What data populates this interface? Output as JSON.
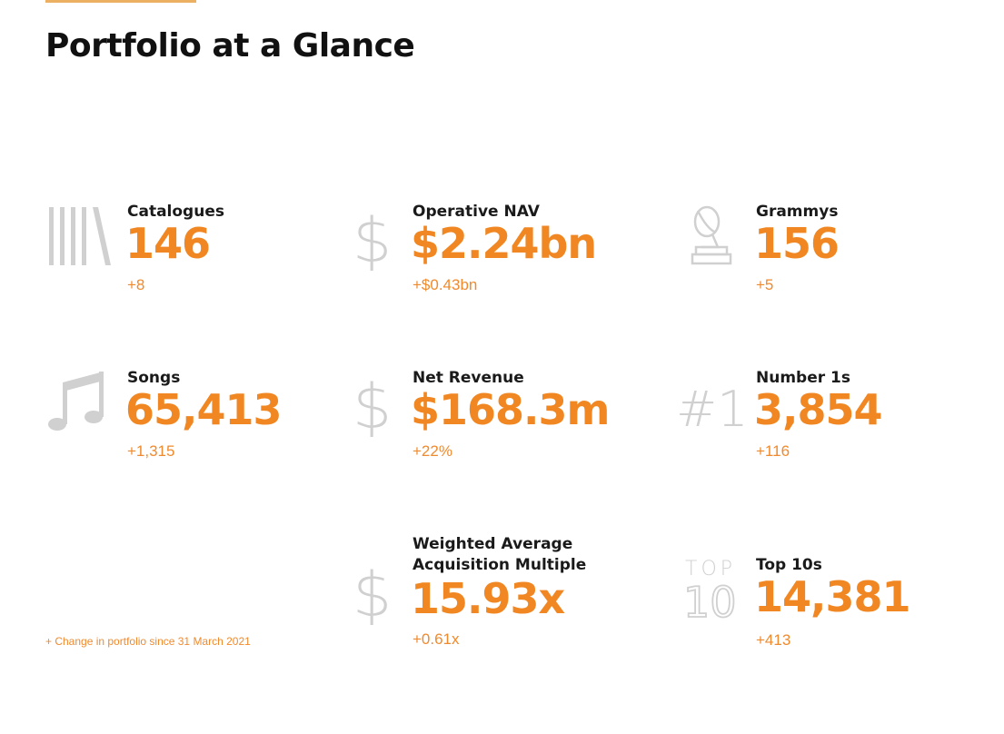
{
  "header": {
    "title": "Portfolio at a Glance"
  },
  "stats": [
    {
      "label": "Catalogues",
      "value": "146",
      "change": "+8",
      "icon": "bookshelf-icon"
    },
    {
      "label": "Operative NAV",
      "value": "$2.24bn",
      "change": "+$0.43bn",
      "icon": "dollar-icon"
    },
    {
      "label": "Grammys",
      "value": "156",
      "change": "+5",
      "icon": "grammy-trophy-icon"
    },
    {
      "label": "Songs",
      "value": "65,413",
      "change": "+1,315",
      "icon": "music-note-icon"
    },
    {
      "label": "Net Revenue",
      "value": "$168.3m",
      "change": "+22%",
      "icon": "dollar-icon"
    },
    {
      "label": "Number 1s",
      "value": "3,854",
      "change": "+116",
      "icon": "number-one-icon",
      "icon_text": "#1"
    },
    {
      "label": "Weighted Average Acquisition Multiple",
      "label_line1": "Weighted Average",
      "label_line2": "Acquisition Multiple",
      "value": "15.93x",
      "change": "+0.61x",
      "icon": "dollar-icon"
    },
    {
      "label": "Top 10s",
      "value": "14,381",
      "change": "+413",
      "icon": "top-ten-icon",
      "icon_text_top": "TOP",
      "icon_text_bottom": "10"
    }
  ],
  "footnote": "+ Change in portfolio since 31 March 2021",
  "colors": {
    "accent": "#f08722",
    "icon_gray": "#d0d0d0",
    "title": "#111111",
    "rule": "#ecb062"
  }
}
